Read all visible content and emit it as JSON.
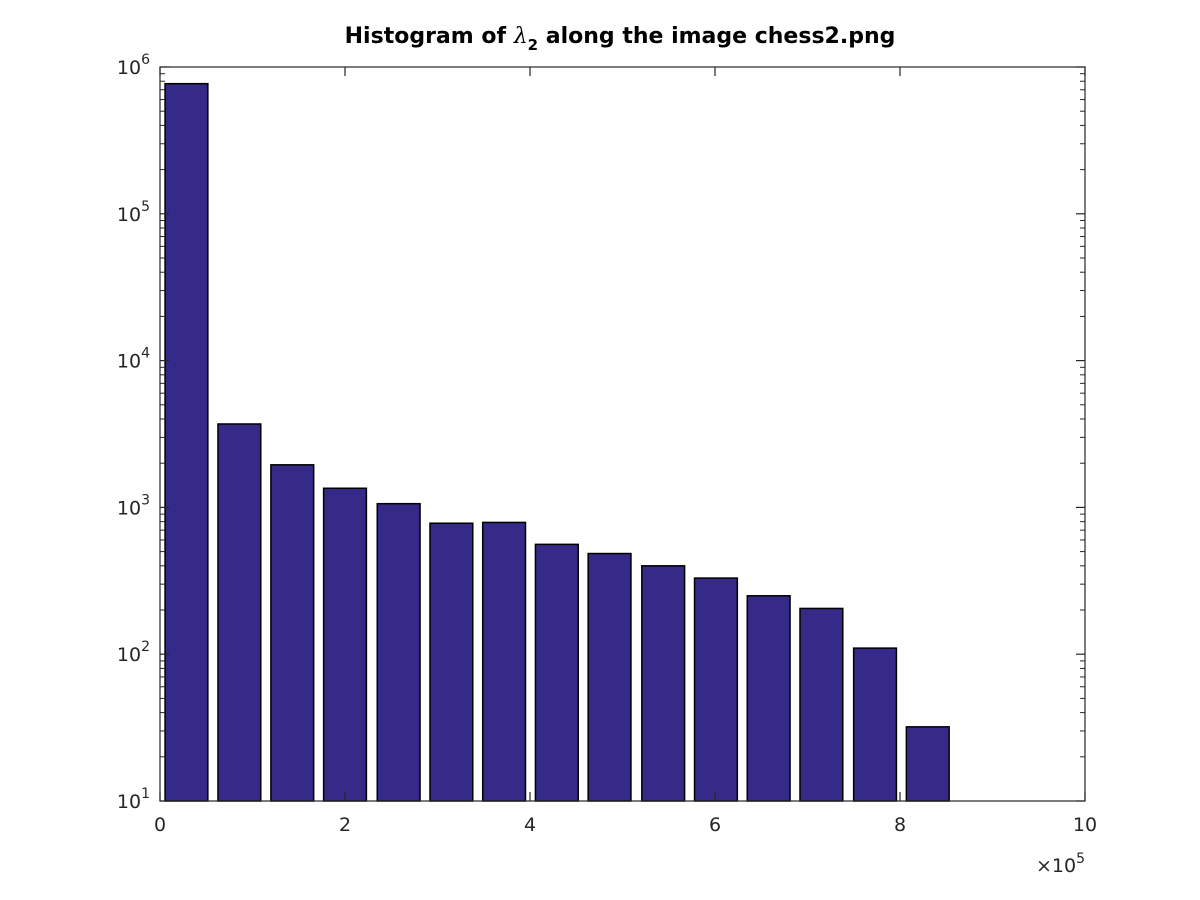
{
  "chart_data": {
    "type": "bar",
    "title": {
      "prefix": "Histogram of ",
      "symbol": "λ",
      "subscript": "2",
      "suffix": " along the image chess2.png"
    },
    "xlabel": "",
    "ylabel": "",
    "x_multiplier": {
      "base": "×10",
      "exponent": "5"
    },
    "xlim": [
      0,
      10
    ],
    "ylim": [
      10,
      1000000
    ],
    "y_scale": "log",
    "grid": false,
    "bar_color": "#352a87",
    "edge_color": "#000000",
    "bar_width": 0.4625,
    "x_ticks": [
      {
        "value": 0,
        "label": "0"
      },
      {
        "value": 2,
        "label": "2"
      },
      {
        "value": 4,
        "label": "4"
      },
      {
        "value": 6,
        "label": "6"
      },
      {
        "value": 8,
        "label": "8"
      },
      {
        "value": 10,
        "label": "10"
      }
    ],
    "y_ticks": [
      {
        "value": 10,
        "base": "10",
        "exponent": "1"
      },
      {
        "value": 100,
        "base": "10",
        "exponent": "2"
      },
      {
        "value": 1000,
        "base": "10",
        "exponent": "3"
      },
      {
        "value": 10000,
        "base": "10",
        "exponent": "4"
      },
      {
        "value": 100000,
        "base": "10",
        "exponent": "5"
      },
      {
        "value": 1000000,
        "base": "10",
        "exponent": "6"
      }
    ],
    "bins": [
      {
        "x": 0.286,
        "value": 770000
      },
      {
        "x": 0.858,
        "value": 3700
      },
      {
        "x": 1.43,
        "value": 1950
      },
      {
        "x": 2.0,
        "value": 1350
      },
      {
        "x": 2.58,
        "value": 1060
      },
      {
        "x": 3.15,
        "value": 780
      },
      {
        "x": 3.72,
        "value": 790
      },
      {
        "x": 4.29,
        "value": 560
      },
      {
        "x": 4.86,
        "value": 485
      },
      {
        "x": 5.44,
        "value": 400
      },
      {
        "x": 6.01,
        "value": 330
      },
      {
        "x": 6.58,
        "value": 250
      },
      {
        "x": 7.15,
        "value": 205
      },
      {
        "x": 7.73,
        "value": 110
      },
      {
        "x": 8.3,
        "value": 32
      },
      {
        "x": 8.87,
        "value": 10
      },
      {
        "x": 9.44,
        "value": 10
      }
    ]
  }
}
